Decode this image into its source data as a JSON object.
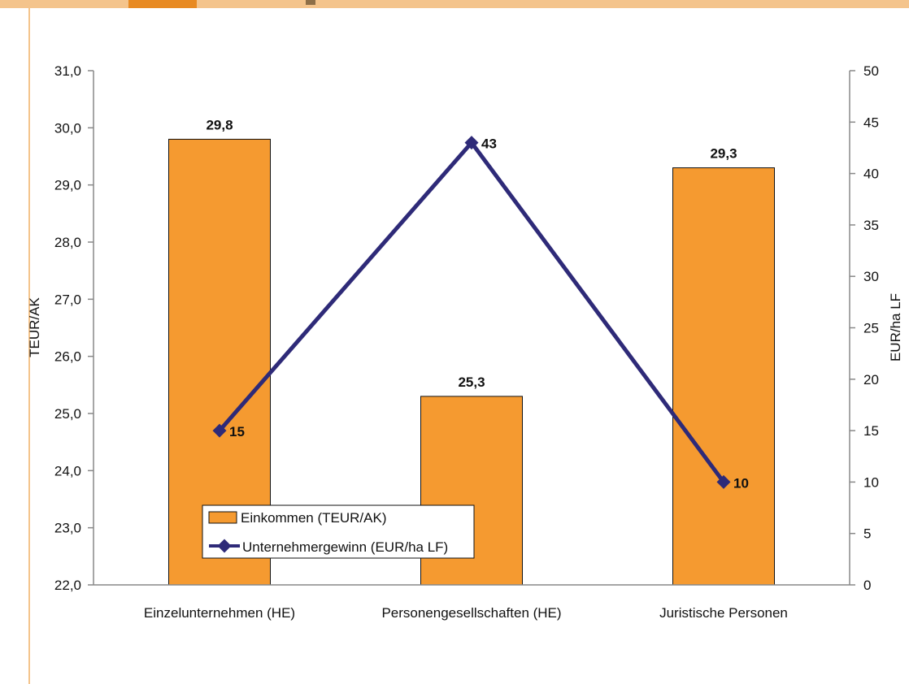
{
  "colors": {
    "bar_fill": "#f59a30",
    "bar_stroke": "#111111",
    "line": "#2e2a78",
    "band": "#f4c48c",
    "accent": "#e88a22"
  },
  "chart_data": {
    "type": "bar",
    "title": "",
    "categories": [
      "Einzelunternehmen (HE)",
      "Personengesellschaften (HE)",
      "Juristische Personen"
    ],
    "series": [
      {
        "name": "Einkommen (TEUR/AK)",
        "type": "bar",
        "axis": "left",
        "values": [
          29.8,
          25.3,
          29.3
        ],
        "labels": [
          "29,8",
          "25,3",
          "29,3"
        ]
      },
      {
        "name": "Unternehmergewinn (EUR/ha LF)",
        "type": "line",
        "axis": "right",
        "values": [
          15,
          43,
          10
        ],
        "labels": [
          "15",
          "43",
          "10"
        ]
      }
    ],
    "ylabel": "TEUR/AK",
    "y2label": "EUR/ha LF",
    "ylim": [
      22,
      31
    ],
    "y2lim": [
      0,
      50
    ],
    "yticks": [
      "22,0",
      "23,0",
      "24,0",
      "25,0",
      "26,0",
      "27,0",
      "28,0",
      "29,0",
      "30,0",
      "31,0"
    ],
    "y2ticks": [
      "0",
      "5",
      "10",
      "15",
      "20",
      "25",
      "30",
      "35",
      "40",
      "45",
      "50"
    ],
    "grid": false,
    "legend": "bottom-left inside plot"
  }
}
